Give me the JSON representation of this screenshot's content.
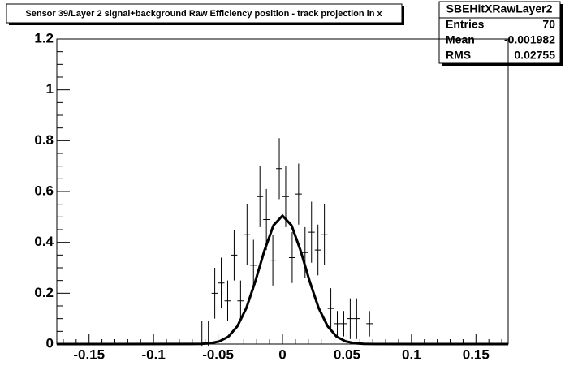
{
  "chart_data": {
    "type": "histogram",
    "title": "Sensor 39/Layer 2 signal+background Raw Efficiency position - track projection in x",
    "stats": {
      "name": "SBEHitXRawLayer2",
      "rows": [
        {
          "label": "Entries",
          "value": "70"
        },
        {
          "label": "Mean",
          "value": "-0.001982"
        },
        {
          "label": "RMS",
          "value": "0.02755"
        }
      ]
    },
    "bins": [
      -0.175,
      -0.17,
      -0.165,
      -0.16,
      -0.155,
      -0.15,
      -0.145,
      -0.14,
      -0.135,
      -0.13,
      -0.125,
      -0.12,
      -0.115,
      -0.11,
      -0.105,
      -0.1,
      -0.095,
      -0.09,
      -0.085,
      -0.08,
      -0.075,
      -0.07,
      -0.065,
      -0.06,
      -0.055,
      -0.05,
      -0.045,
      -0.04,
      -0.035,
      -0.03,
      -0.025,
      -0.02,
      -0.015,
      -0.01,
      -0.005,
      0,
      0.005,
      0.01,
      0.015,
      0.02,
      0.025,
      0.03,
      0.035,
      0.04,
      0.045,
      0.05,
      0.055,
      0.06,
      0.065,
      0.07,
      0.075,
      0.08,
      0.085,
      0.09,
      0.095,
      0.1,
      0.105,
      0.11,
      0.115,
      0.12,
      0.125,
      0.13,
      0.135,
      0.14,
      0.145,
      0.15,
      0.155,
      0.16,
      0.165,
      0.17,
      0.175
    ],
    "values": [
      0,
      0,
      0,
      0,
      0,
      0,
      0,
      0,
      0,
      0,
      0,
      0,
      0,
      0,
      0,
      0,
      0,
      0,
      0,
      0,
      0,
      0,
      0.04,
      0.04,
      0.2,
      0.24,
      0.17,
      0.35,
      0.17,
      0.43,
      0.31,
      0.58,
      0.49,
      0.33,
      0.69,
      0.58,
      0.34,
      0.59,
      0.36,
      0.44,
      0.37,
      0.43,
      0.14,
      0.08,
      0.08,
      0.1,
      0.1,
      0,
      0.08,
      0,
      0,
      0,
      0,
      0,
      0,
      0,
      0,
      0,
      0,
      0,
      0,
      0,
      0,
      0,
      0,
      0,
      0,
      0,
      0,
      0
    ],
    "errors": [
      0,
      0,
      0,
      0,
      0,
      0,
      0,
      0,
      0,
      0,
      0,
      0,
      0,
      0,
      0,
      0,
      0,
      0,
      0,
      0,
      0,
      0,
      0.05,
      0.05,
      0.1,
      0.1,
      0.08,
      0.1,
      0.08,
      0.12,
      0.1,
      0.12,
      0.12,
      0.1,
      0.12,
      0.12,
      0.1,
      0.12,
      0.1,
      0.12,
      0.1,
      0.12,
      0.08,
      0.05,
      0.05,
      0.08,
      0.08,
      0,
      0.05,
      0,
      0,
      0,
      0,
      0,
      0,
      0,
      0,
      0,
      0,
      0,
      0,
      0,
      0,
      0,
      0,
      0,
      0,
      0,
      0,
      0
    ],
    "color": "#000000",
    "fit": {
      "color": "#000000",
      "x": [
        -0.175,
        -0.07,
        -0.063,
        -0.056,
        -0.049,
        -0.042,
        -0.035,
        -0.028,
        -0.021,
        -0.014,
        -0.007,
        0,
        0.007,
        0.014,
        0.021,
        0.028,
        0.035,
        0.042,
        0.049,
        0.056,
        0.063,
        0.07,
        0.175
      ],
      "values": [
        0,
        0.0002,
        0.0008,
        0.0032,
        0.0105,
        0.029,
        0.07,
        0.142,
        0.248,
        0.368,
        0.467,
        0.505,
        0.467,
        0.368,
        0.248,
        0.142,
        0.07,
        0.029,
        0.0105,
        0.0032,
        0.0008,
        0.0002,
        0
      ]
    },
    "xlim": [
      -0.175,
      0.175
    ],
    "ylim": [
      0,
      1.2
    ],
    "xticks": [
      -0.15,
      -0.1,
      -0.05,
      0,
      0.05,
      0.1,
      0.15
    ],
    "yticks": [
      0,
      0.2,
      0.4,
      0.6,
      0.8,
      1,
      1.2
    ]
  }
}
